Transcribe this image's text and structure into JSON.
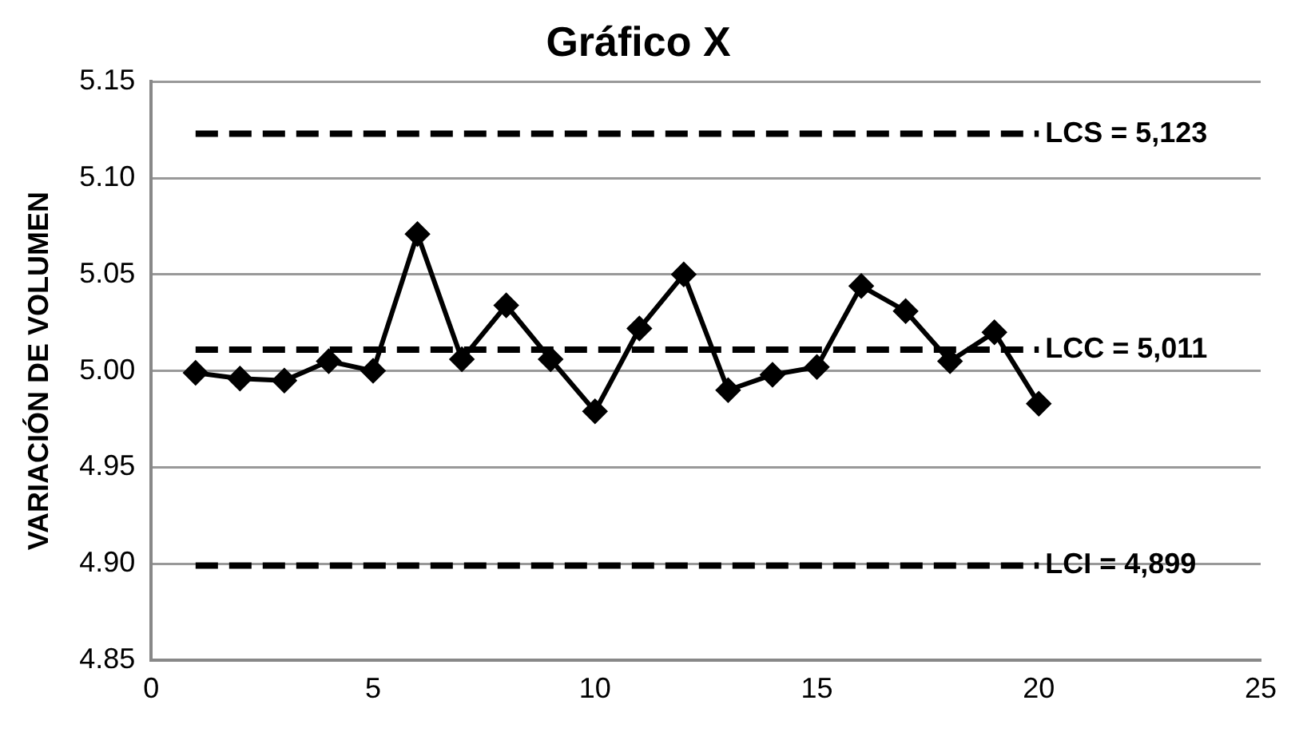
{
  "chart_data": {
    "type": "line",
    "title": "Gráfico X",
    "ylabel": "VARIACIÓN DE VOLUMEN",
    "x": [
      1,
      2,
      3,
      4,
      5,
      6,
      7,
      8,
      9,
      10,
      11,
      12,
      13,
      14,
      15,
      16,
      17,
      18,
      19,
      20
    ],
    "series": [
      {
        "color": "#000000",
        "marker": "diamond",
        "line_style": "solid",
        "values": [
          4.999,
          4.996,
          4.995,
          5.005,
          5.0,
          5.071,
          5.006,
          5.034,
          5.006,
          4.979,
          5.022,
          5.05,
          4.99,
          4.998,
          5.002,
          5.044,
          5.031,
          5.005,
          5.02,
          4.983
        ]
      },
      {
        "name": "LCS = 5,123",
        "color": "#000000",
        "marker": "none",
        "line_style": "dashed",
        "values": [
          5.123,
          5.123,
          5.123,
          5.123,
          5.123,
          5.123,
          5.123,
          5.123,
          5.123,
          5.123,
          5.123,
          5.123,
          5.123,
          5.123,
          5.123,
          5.123,
          5.123,
          5.123,
          5.123,
          5.123
        ]
      },
      {
        "name": "LCC = 5,011",
        "color": "#000000",
        "marker": "none",
        "line_style": "dashed",
        "values": [
          5.011,
          5.011,
          5.011,
          5.011,
          5.011,
          5.011,
          5.011,
          5.011,
          5.011,
          5.011,
          5.011,
          5.011,
          5.011,
          5.011,
          5.011,
          5.011,
          5.011,
          5.011,
          5.011,
          5.011
        ]
      },
      {
        "name": "LCI = 4,899",
        "color": "#000000",
        "marker": "none",
        "line_style": "dashed",
        "values": [
          4.899,
          4.899,
          4.899,
          4.899,
          4.899,
          4.899,
          4.899,
          4.899,
          4.899,
          4.899,
          4.899,
          4.899,
          4.899,
          4.899,
          4.899,
          4.899,
          4.899,
          4.899,
          4.899,
          4.899
        ]
      }
    ],
    "xlim": [
      0,
      25
    ],
    "xticks": [
      0,
      5,
      10,
      15,
      20,
      25
    ],
    "ylim": [
      4.85,
      5.15
    ],
    "yticks": [
      4.85,
      {
        "value": 4.9,
        "label": "4.90"
      },
      4.95,
      {
        "value": 5.0,
        "label": "5.00"
      },
      5.05,
      {
        "value": 5.1,
        "label": "5.10"
      },
      5.15
    ],
    "grid": "y"
  }
}
